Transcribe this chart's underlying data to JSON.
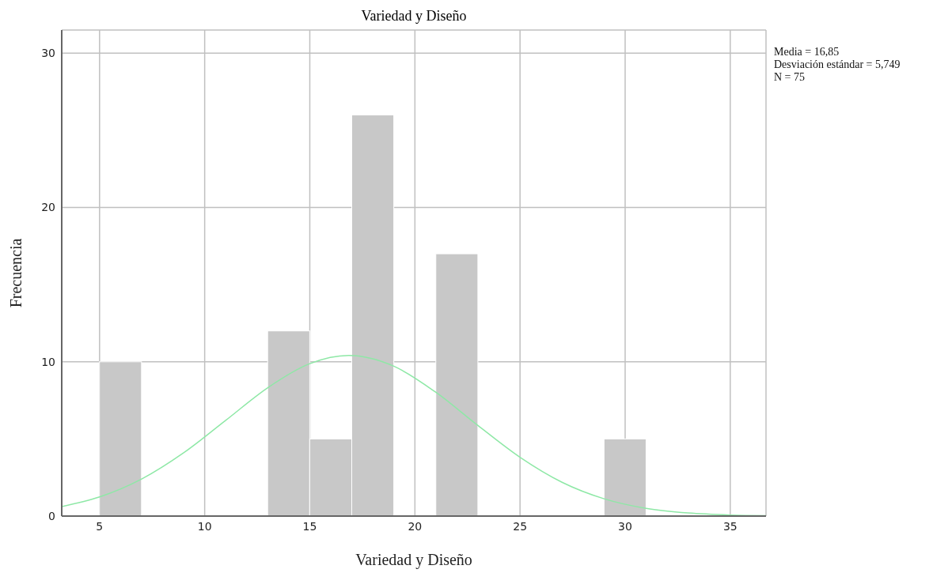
{
  "chart_data": {
    "type": "histogram",
    "title": "Variedad y Diseño",
    "xlabel": "Variedad y Diseño",
    "ylabel": "Frecuencia",
    "bins": [
      5,
      7,
      9,
      11,
      13,
      15,
      17,
      19,
      21,
      23,
      25,
      27,
      29,
      31
    ],
    "values": [
      10,
      0,
      0,
      0,
      12,
      5,
      26,
      0,
      17,
      0,
      0,
      0,
      5
    ],
    "color": "#c8c8c8",
    "series": [
      {
        "type": "line",
        "color": "#8ee8a6",
        "x": [
          3.2,
          5,
          7,
          9,
          11,
          13,
          15,
          16.85,
          19,
          21,
          23,
          25,
          27,
          29,
          31,
          33,
          35,
          36.7
        ],
        "values": [
          0.62,
          1.24,
          2.4,
          4.1,
          6.2,
          8.32,
          9.88,
          10.41,
          9.71,
          8.02,
          5.87,
          3.81,
          2.19,
          1.12,
          0.5,
          0.2,
          0.07,
          0.03
        ]
      }
    ],
    "xlim": [
      3.2,
      36.7
    ],
    "xticks": [
      5,
      10,
      15,
      20,
      25,
      30,
      35
    ],
    "ylim": [
      0,
      31.5
    ],
    "yticks": [
      0,
      10,
      20,
      30
    ],
    "grid": true,
    "annotations": [
      "Media = 16,85",
      "Desviación estándar = 5,749",
      "N = 75"
    ]
  }
}
